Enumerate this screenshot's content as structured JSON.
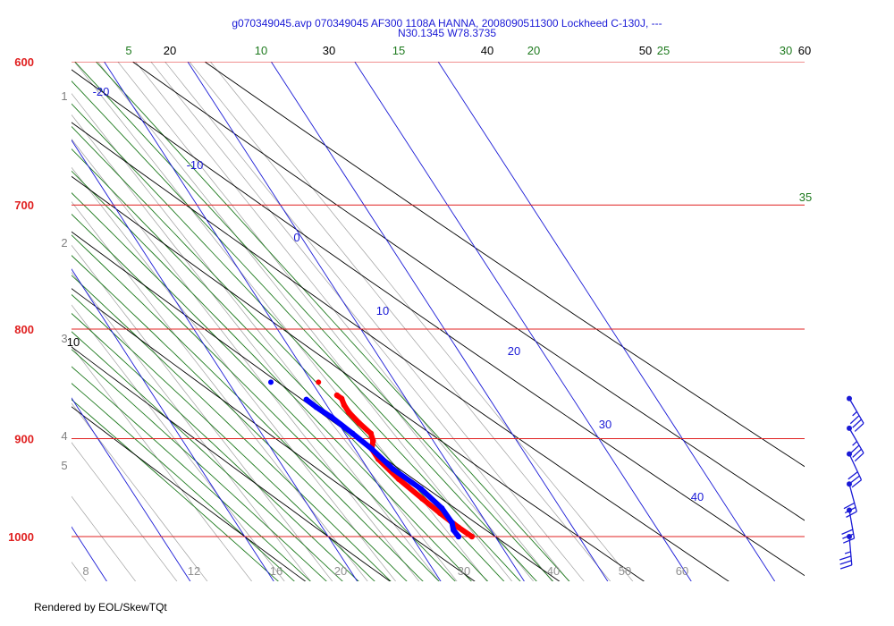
{
  "header": {
    "title_line1": "g070349045.avp 070349045 AF300 1108A HANNA, 2008090511300 Lockheed C-130J, ---",
    "title_line2": "N30.1345 W78.3735"
  },
  "footer": {
    "credit": "Rendered by EOL/SkewTQt"
  },
  "chart_data": {
    "type": "skew-t",
    "colors": {
      "isobar": "#e02020",
      "isotherm": "#1a1ad6",
      "dry_adiabat": "#000000",
      "moist_adiabat": "#1e7a1e",
      "mixing_ratio": "#a0a0a0",
      "temperature": "#ff0000",
      "dewpoint": "#0000ff",
      "wind": "#1a1ad6"
    },
    "isobars": [
      {
        "p": 600,
        "label": "600"
      },
      {
        "p": 700,
        "label": "700"
      },
      {
        "p": 800,
        "label": "800"
      },
      {
        "p": 900,
        "label": "900"
      },
      {
        "p": 1000,
        "label": "1000"
      }
    ],
    "height_labels": [
      "1",
      "2",
      "3",
      "4",
      "5"
    ],
    "isotherm_labels": [
      "-20",
      "-10",
      "0",
      "10",
      "20",
      "30",
      "40"
    ],
    "dry_adiabat_labels": [
      "10",
      "20",
      "30",
      "40",
      "50",
      "60"
    ],
    "moist_adiabat_labels": [
      "5",
      "10",
      "15",
      "20",
      "25",
      "30",
      "35"
    ],
    "mixing_ratio_labels": [
      "8",
      "12",
      "16",
      "20",
      "30",
      "40",
      "50",
      "60"
    ],
    "temperature": [
      {
        "p": 1000,
        "t": 27.2
      },
      {
        "p": 990,
        "t": 26.3
      },
      {
        "p": 975,
        "t": 25.2
      },
      {
        "p": 960,
        "t": 24.2
      },
      {
        "p": 940,
        "t": 22.9
      },
      {
        "p": 920,
        "t": 22.0
      },
      {
        "p": 910,
        "t": 22.0
      },
      {
        "p": 902,
        "t": 22.8
      },
      {
        "p": 895,
        "t": 23.1
      },
      {
        "p": 885,
        "t": 22.5
      },
      {
        "p": 875,
        "t": 22.1
      },
      {
        "p": 868,
        "t": 22.1
      },
      {
        "p": 862,
        "t": 22.3
      },
      {
        "p": 859,
        "t": 22.0
      }
    ],
    "dewpoint": [
      {
        "p": 1000,
        "t": 25.6
      },
      {
        "p": 993,
        "t": 25.5
      },
      {
        "p": 985,
        "t": 25.9
      },
      {
        "p": 970,
        "t": 25.8
      },
      {
        "p": 950,
        "t": 24.8
      },
      {
        "p": 930,
        "t": 23.0
      },
      {
        "p": 910,
        "t": 22.0
      },
      {
        "p": 895,
        "t": 20.9
      },
      {
        "p": 880,
        "t": 19.7
      },
      {
        "p": 870,
        "t": 18.6
      },
      {
        "p": 863,
        "t": 18.0
      }
    ],
    "isolated_points": [
      {
        "series": "dewpoint",
        "p": 847,
        "t": 15.1
      },
      {
        "series": "temperature",
        "p": 847,
        "t": 20.8
      }
    ],
    "wind_barbs": [
      {
        "p": 862,
        "direction": 150,
        "speed_kt": 35
      },
      {
        "p": 890,
        "direction": 150,
        "speed_kt": 35
      },
      {
        "p": 915,
        "direction": 155,
        "speed_kt": 30
      },
      {
        "p": 945,
        "direction": 165,
        "speed_kt": 30
      },
      {
        "p": 972,
        "direction": 170,
        "speed_kt": 30
      },
      {
        "p": 1000,
        "direction": 175,
        "speed_kt": 35
      }
    ]
  }
}
